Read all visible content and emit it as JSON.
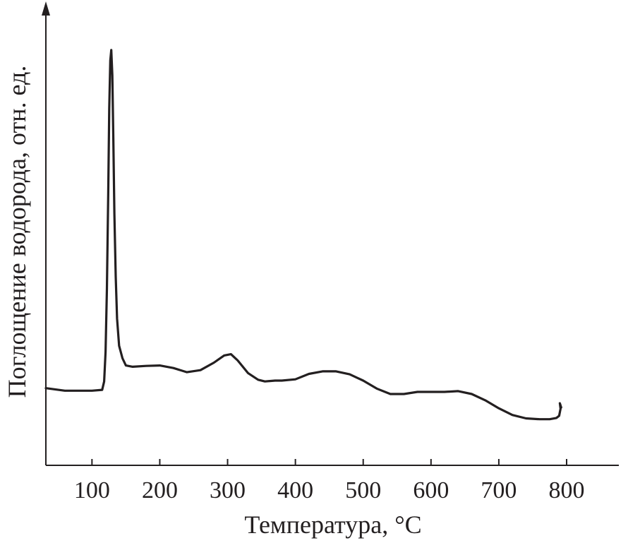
{
  "chart_data": {
    "type": "line",
    "title": "",
    "xlabel": "Температура, °С",
    "ylabel": "Поглощение водорода, отн. ед.",
    "xlim": [
      32,
      877
    ],
    "ylim": [
      0,
      1
    ],
    "x_ticks": [
      100,
      200,
      300,
      400,
      500,
      600,
      700,
      800
    ],
    "y_ticks": [],
    "y_axis_arrow": true,
    "grid": false,
    "legend": "none",
    "line_color": "#231f20",
    "series": [
      {
        "x": [
          32,
          60,
          100,
          115,
          118,
          120,
          122,
          124,
          125.5,
          127,
          128.5,
          130,
          131.5,
          133,
          135,
          137,
          140,
          145,
          150,
          160,
          180,
          200,
          220,
          240,
          260,
          280,
          295,
          305,
          315,
          330,
          345,
          355,
          370,
          380,
          400,
          420,
          440,
          460,
          480,
          500,
          520,
          540,
          560,
          580,
          600,
          620,
          640,
          660,
          680,
          700,
          720,
          740,
          760,
          775,
          785,
          789,
          791,
          790,
          792
        ],
        "y": [
          0.184,
          0.178,
          0.178,
          0.18,
          0.2,
          0.27,
          0.42,
          0.65,
          0.85,
          0.965,
          0.99,
          0.93,
          0.78,
          0.6,
          0.45,
          0.35,
          0.285,
          0.255,
          0.238,
          0.235,
          0.237,
          0.238,
          0.232,
          0.222,
          0.227,
          0.245,
          0.262,
          0.265,
          0.25,
          0.22,
          0.204,
          0.2,
          0.202,
          0.202,
          0.205,
          0.218,
          0.224,
          0.224,
          0.217,
          0.202,
          0.183,
          0.17,
          0.17,
          0.175,
          0.175,
          0.175,
          0.177,
          0.17,
          0.155,
          0.136,
          0.12,
          0.112,
          0.11,
          0.11,
          0.113,
          0.118,
          0.135,
          0.148,
          0.138
        ]
      }
    ]
  }
}
